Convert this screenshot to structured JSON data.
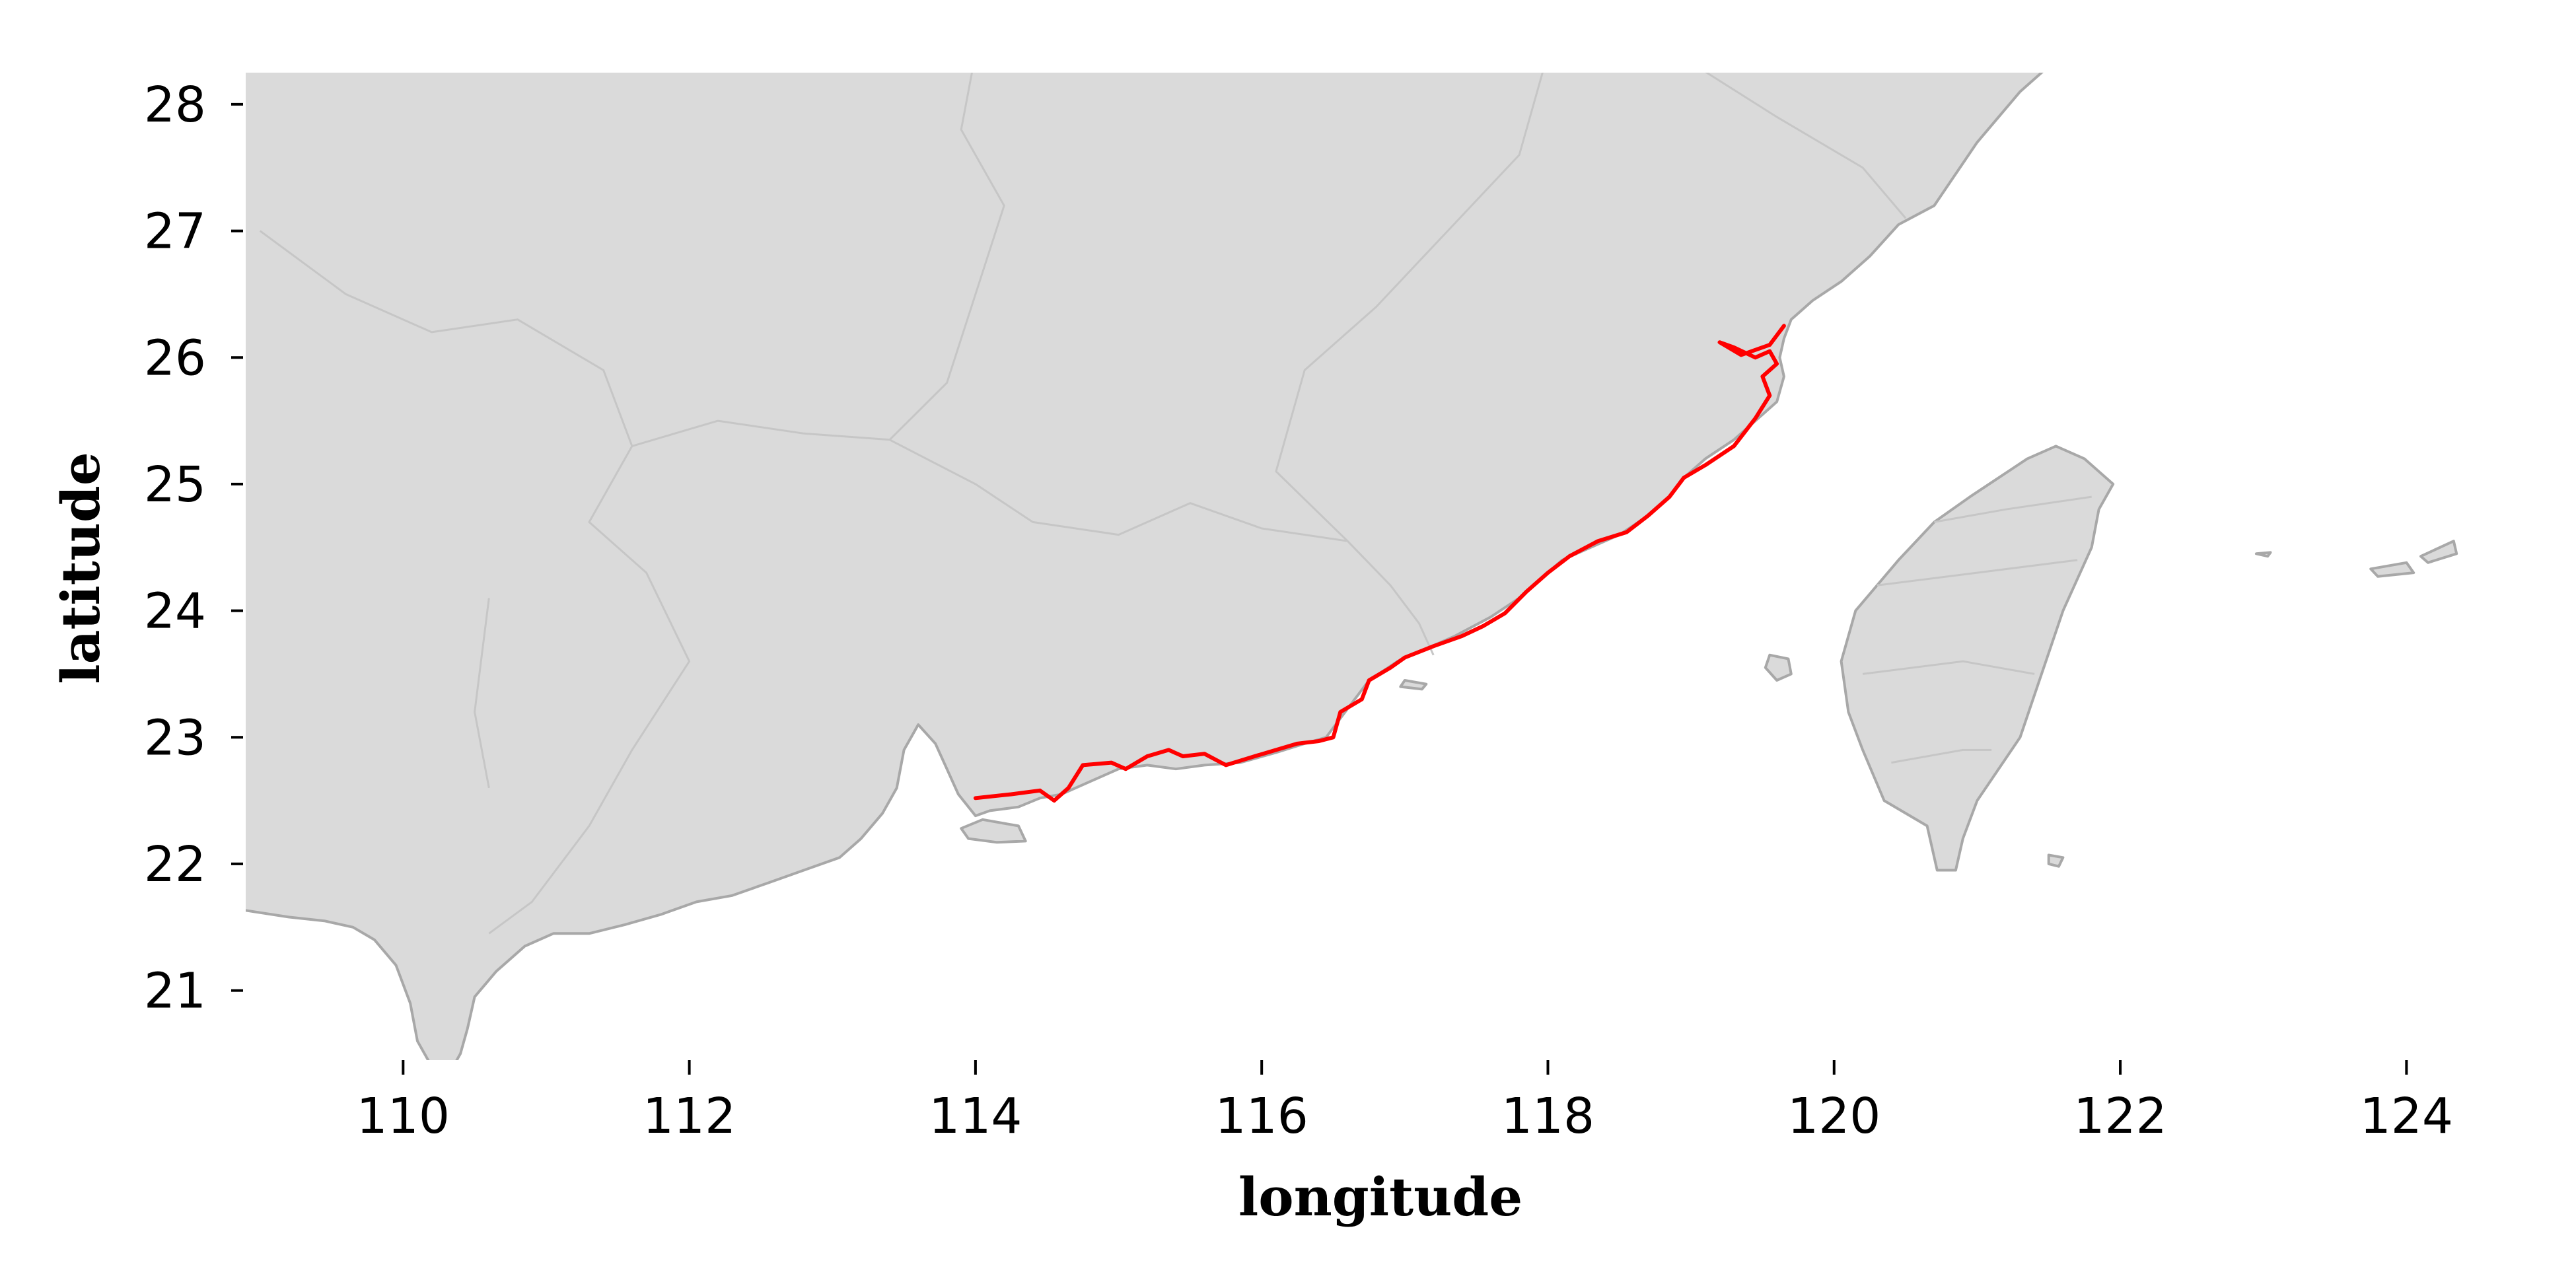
{
  "map": {
    "xlabel": "longitude",
    "ylabel": "latitude",
    "xlim": [
      108.9,
      125.0
    ],
    "ylim": [
      20.45,
      28.25
    ],
    "x_ticks": [
      110,
      112,
      114,
      116,
      118,
      120,
      122,
      124
    ],
    "y_ticks": [
      21,
      22,
      23,
      24,
      25,
      26,
      27,
      28
    ],
    "colors": {
      "land": "#dadada",
      "coastline": "#a8a8a8",
      "borders": "#c6c6c6",
      "route": "#ff0000"
    },
    "route": {
      "color": "#ff0000",
      "points": [
        [
          114.0,
          22.52
        ],
        [
          114.25,
          22.55
        ],
        [
          114.45,
          22.58
        ],
        [
          114.55,
          22.5
        ],
        [
          114.65,
          22.6
        ],
        [
          114.75,
          22.78
        ],
        [
          114.95,
          22.8
        ],
        [
          115.05,
          22.75
        ],
        [
          115.2,
          22.85
        ],
        [
          115.35,
          22.9
        ],
        [
          115.45,
          22.85
        ],
        [
          115.6,
          22.87
        ],
        [
          115.75,
          22.78
        ],
        [
          115.95,
          22.85
        ],
        [
          116.1,
          22.9
        ],
        [
          116.25,
          22.95
        ],
        [
          116.4,
          22.97
        ],
        [
          116.5,
          23.0
        ],
        [
          116.55,
          23.2
        ],
        [
          116.7,
          23.3
        ],
        [
          116.75,
          23.45
        ],
        [
          116.9,
          23.55
        ],
        [
          117.0,
          23.63
        ],
        [
          117.2,
          23.72
        ],
        [
          117.4,
          23.8
        ],
        [
          117.55,
          23.88
        ],
        [
          117.7,
          23.98
        ],
        [
          117.85,
          24.15
        ],
        [
          118.0,
          24.3
        ],
        [
          118.15,
          24.43
        ],
        [
          118.35,
          24.55
        ],
        [
          118.55,
          24.62
        ],
        [
          118.7,
          24.75
        ],
        [
          118.85,
          24.9
        ],
        [
          118.95,
          25.05
        ],
        [
          119.1,
          25.15
        ],
        [
          119.3,
          25.3
        ],
        [
          119.45,
          25.52
        ],
        [
          119.55,
          25.7
        ],
        [
          119.5,
          25.85
        ],
        [
          119.6,
          25.95
        ],
        [
          119.55,
          26.05
        ],
        [
          119.45,
          26.0
        ],
        [
          119.3,
          26.08
        ],
        [
          119.2,
          26.12
        ],
        [
          119.35,
          26.02
        ],
        [
          119.55,
          26.1
        ],
        [
          119.65,
          26.25
        ]
      ]
    }
  }
}
